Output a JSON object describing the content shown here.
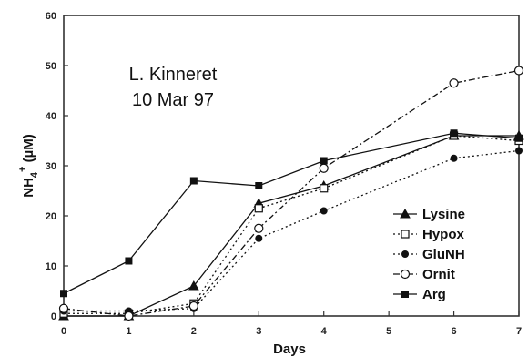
{
  "chart_data": {
    "type": "line",
    "xlabel": "Days",
    "ylabel_main": "NH",
    "ylabel_sub": "4",
    "ylabel_sup": "+",
    "ylabel_rest": " (µM)",
    "annotation": [
      "L. Kinneret",
      "10 Mar 97"
    ],
    "xlim": [
      0,
      7
    ],
    "ylim": [
      0,
      60
    ],
    "xticks": [
      0,
      1,
      2,
      3,
      4,
      5,
      6,
      7
    ],
    "yticks": [
      0,
      10,
      20,
      30,
      40,
      50,
      60
    ],
    "grid": false,
    "legend_position": "lower-right",
    "series": [
      {
        "name": "Lysine",
        "marker": "filled-triangle",
        "line": "solid",
        "points": [
          [
            0,
            0
          ],
          [
            1,
            0
          ],
          [
            2,
            6
          ],
          [
            3,
            22.5
          ],
          [
            4,
            26
          ],
          [
            6,
            36
          ],
          [
            7,
            36
          ]
        ]
      },
      {
        "name": "Hypox",
        "marker": "open-square",
        "line": "dotted",
        "points": [
          [
            0,
            0.5
          ],
          [
            1,
            0.5
          ],
          [
            2,
            2.5
          ],
          [
            3,
            21.5
          ],
          [
            4,
            25.5
          ],
          [
            6,
            36
          ],
          [
            7,
            35
          ]
        ]
      },
      {
        "name": "GluNH",
        "marker": "filled-circle",
        "line": "dotted",
        "points": [
          [
            0,
            1
          ],
          [
            1,
            1
          ],
          [
            2,
            1.5
          ],
          [
            3,
            15.5
          ],
          [
            4,
            21
          ],
          [
            6,
            31.5
          ],
          [
            7,
            33
          ]
        ]
      },
      {
        "name": "Ornit",
        "marker": "open-circle",
        "line": "dash-dot",
        "points": [
          [
            0,
            1.5
          ],
          [
            1,
            0
          ],
          [
            2,
            2
          ],
          [
            3,
            17.5
          ],
          [
            4,
            29.5
          ],
          [
            6,
            46.5
          ],
          [
            7,
            49
          ]
        ]
      },
      {
        "name": "Arg",
        "marker": "filled-square",
        "line": "solid",
        "points": [
          [
            0,
            4.5
          ],
          [
            1,
            11
          ],
          [
            2,
            27
          ],
          [
            3,
            26
          ],
          [
            4,
            31
          ],
          [
            6,
            36.5
          ],
          [
            7,
            35.5
          ]
        ]
      }
    ]
  }
}
